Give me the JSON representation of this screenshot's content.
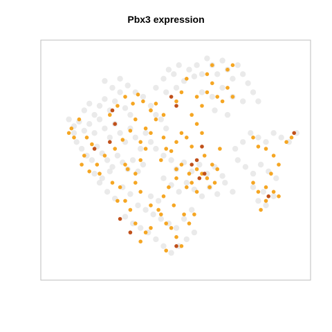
{
  "chart_data": {
    "type": "scatter",
    "title": "Pbx3 expression",
    "xlabel": "",
    "ylabel": "",
    "grid": false,
    "legend": "none",
    "axes_ticks": false,
    "colors": {
      "background_cells": "#e3e3e3",
      "low_expression": "#f5a623",
      "high_expression": "#c0501a"
    },
    "xlim": [
      0,
      100
    ],
    "ylim": [
      0,
      100
    ],
    "series": [
      {
        "level": "not_expressed",
        "points": [
          [
            10,
            65
          ],
          [
            12,
            67
          ],
          [
            14,
            63
          ],
          [
            16,
            66
          ],
          [
            18,
            62
          ],
          [
            20,
            68
          ],
          [
            22,
            64
          ],
          [
            24,
            60
          ],
          [
            26,
            66
          ],
          [
            28,
            62
          ],
          [
            30,
            58
          ],
          [
            32,
            64
          ],
          [
            34,
            60
          ],
          [
            36,
            55
          ],
          [
            38,
            62
          ],
          [
            40,
            58
          ],
          [
            11,
            58
          ],
          [
            13,
            55
          ],
          [
            15,
            52
          ],
          [
            17,
            50
          ],
          [
            19,
            56
          ],
          [
            21,
            53
          ],
          [
            23,
            50
          ],
          [
            25,
            47
          ],
          [
            27,
            52
          ],
          [
            29,
            49
          ],
          [
            31,
            46
          ],
          [
            33,
            50
          ],
          [
            35,
            45
          ],
          [
            37,
            48
          ],
          [
            14,
            72
          ],
          [
            16,
            75
          ],
          [
            18,
            70
          ],
          [
            20,
            74
          ],
          [
            22,
            77
          ],
          [
            24,
            72
          ],
          [
            26,
            76
          ],
          [
            28,
            80
          ],
          [
            30,
            73
          ],
          [
            32,
            70
          ],
          [
            22,
            85
          ],
          [
            25,
            82
          ],
          [
            28,
            86
          ],
          [
            31,
            83
          ],
          [
            34,
            80
          ],
          [
            37,
            78
          ],
          [
            40,
            74
          ],
          [
            42,
            70
          ],
          [
            44,
            68
          ],
          [
            46,
            64
          ],
          [
            42,
            82
          ],
          [
            45,
            86
          ],
          [
            47,
            90
          ],
          [
            49,
            88
          ],
          [
            51,
            92
          ],
          [
            53,
            85
          ],
          [
            55,
            90
          ],
          [
            57,
            87
          ],
          [
            46,
            80
          ],
          [
            50,
            82
          ],
          [
            58,
            92
          ],
          [
            60,
            88
          ],
          [
            62,
            95
          ],
          [
            64,
            92
          ],
          [
            66,
            88
          ],
          [
            68,
            94
          ],
          [
            70,
            90
          ],
          [
            72,
            86
          ],
          [
            74,
            92
          ],
          [
            76,
            88
          ],
          [
            78,
            84
          ],
          [
            80,
            80
          ],
          [
            82,
            76
          ],
          [
            60,
            80
          ],
          [
            64,
            78
          ],
          [
            68,
            82
          ],
          [
            72,
            78
          ],
          [
            76,
            76
          ],
          [
            65,
            72
          ],
          [
            70,
            70
          ],
          [
            42,
            55
          ],
          [
            45,
            52
          ],
          [
            48,
            50
          ],
          [
            50,
            46
          ],
          [
            53,
            49
          ],
          [
            56,
            45
          ],
          [
            59,
            48
          ],
          [
            62,
            44
          ],
          [
            65,
            47
          ],
          [
            68,
            43
          ],
          [
            45,
            42
          ],
          [
            48,
            39
          ],
          [
            51,
            36
          ],
          [
            54,
            40
          ],
          [
            57,
            37
          ],
          [
            60,
            34
          ],
          [
            63,
            38
          ],
          [
            66,
            35
          ],
          [
            69,
            40
          ],
          [
            72,
            36
          ],
          [
            73,
            55
          ],
          [
            76,
            58
          ],
          [
            79,
            62
          ],
          [
            82,
            60
          ],
          [
            85,
            58
          ],
          [
            88,
            62
          ],
          [
            91,
            60
          ],
          [
            94,
            58
          ],
          [
            97,
            62
          ],
          [
            74,
            50
          ],
          [
            77,
            47
          ],
          [
            80,
            44
          ],
          [
            83,
            48
          ],
          [
            86,
            45
          ],
          [
            89,
            42
          ],
          [
            84,
            36
          ],
          [
            82,
            32
          ],
          [
            85,
            30
          ],
          [
            88,
            34
          ],
          [
            80,
            38
          ],
          [
            30,
            25
          ],
          [
            33,
            22
          ],
          [
            36,
            20
          ],
          [
            39,
            18
          ],
          [
            42,
            15
          ],
          [
            45,
            12
          ],
          [
            48,
            9
          ],
          [
            51,
            12
          ],
          [
            54,
            15
          ],
          [
            57,
            18
          ],
          [
            35,
            30
          ],
          [
            38,
            28
          ],
          [
            41,
            26
          ],
          [
            44,
            24
          ],
          [
            47,
            22
          ],
          [
            50,
            20
          ],
          [
            53,
            24
          ],
          [
            56,
            28
          ],
          [
            40,
            34
          ],
          [
            43,
            32
          ],
          [
            20,
            40
          ],
          [
            23,
            36
          ],
          [
            26,
            33
          ],
          [
            29,
            38
          ],
          [
            32,
            35
          ],
          [
            18,
            44
          ],
          [
            21,
            42
          ],
          [
            24,
            45
          ],
          [
            8,
            68
          ],
          [
            10,
            62
          ]
        ]
      },
      {
        "level": "low",
        "points": [
          [
            8,
            62
          ],
          [
            12,
            68
          ],
          [
            15,
            60
          ],
          [
            14,
            52
          ],
          [
            17,
            57
          ],
          [
            19,
            48
          ],
          [
            22,
            52
          ],
          [
            16,
            45
          ],
          [
            20,
            44
          ],
          [
            13,
            48
          ],
          [
            25,
            40
          ],
          [
            28,
            38
          ],
          [
            27,
            32
          ],
          [
            31,
            46
          ],
          [
            34,
            44
          ],
          [
            36,
            50
          ],
          [
            26,
            55
          ],
          [
            29,
            59
          ],
          [
            32,
            63
          ],
          [
            34,
            68
          ],
          [
            38,
            64
          ],
          [
            40,
            62
          ],
          [
            36,
            58
          ],
          [
            38,
            55
          ],
          [
            24,
            70
          ],
          [
            27,
            74
          ],
          [
            30,
            78
          ],
          [
            33,
            75
          ],
          [
            35,
            79
          ],
          [
            37,
            76
          ],
          [
            40,
            72
          ],
          [
            42,
            68
          ],
          [
            45,
            60
          ],
          [
            46,
            55
          ],
          [
            44,
            50
          ],
          [
            48,
            54
          ],
          [
            50,
            46
          ],
          [
            52,
            48
          ],
          [
            55,
            44
          ],
          [
            56,
            40
          ],
          [
            58,
            46
          ],
          [
            60,
            44
          ],
          [
            62,
            42
          ],
          [
            63,
            38
          ],
          [
            65,
            40
          ],
          [
            58,
            36
          ],
          [
            54,
            38
          ],
          [
            50,
            42
          ],
          [
            47,
            38
          ],
          [
            45,
            34
          ],
          [
            52,
            62
          ],
          [
            54,
            60
          ],
          [
            56,
            56
          ],
          [
            50,
            58
          ],
          [
            61,
            52
          ],
          [
            64,
            48
          ],
          [
            66,
            46
          ],
          [
            67,
            55
          ],
          [
            60,
            62
          ],
          [
            58,
            66
          ],
          [
            56,
            70
          ],
          [
            50,
            76
          ],
          [
            52,
            80
          ],
          [
            54,
            86
          ],
          [
            58,
            78
          ],
          [
            60,
            74
          ],
          [
            62,
            80
          ],
          [
            64,
            84
          ],
          [
            66,
            78
          ],
          [
            68,
            76
          ],
          [
            70,
            82
          ],
          [
            72,
            78
          ],
          [
            72,
            92
          ],
          [
            70,
            90
          ],
          [
            62,
            88
          ],
          [
            64,
            92
          ],
          [
            80,
            60
          ],
          [
            82,
            56
          ],
          [
            85,
            55
          ],
          [
            88,
            52
          ],
          [
            90,
            48
          ],
          [
            87,
            44
          ],
          [
            85,
            38
          ],
          [
            82,
            36
          ],
          [
            80,
            40
          ],
          [
            88,
            36
          ],
          [
            90,
            34
          ],
          [
            85,
            32
          ],
          [
            83,
            28
          ],
          [
            93,
            58
          ],
          [
            95,
            60
          ],
          [
            40,
            72
          ],
          [
            42,
            75
          ],
          [
            45,
            70
          ],
          [
            44,
            26
          ],
          [
            46,
            22
          ],
          [
            48,
            20
          ],
          [
            50,
            16
          ],
          [
            52,
            12
          ],
          [
            46,
            10
          ],
          [
            40,
            20
          ],
          [
            38,
            18
          ],
          [
            36,
            14
          ],
          [
            34,
            22
          ],
          [
            32,
            28
          ],
          [
            30,
            32
          ],
          [
            40,
            30
          ],
          [
            43,
            28
          ],
          [
            49,
            30
          ],
          [
            53,
            26
          ],
          [
            55,
            22
          ],
          [
            57,
            26
          ],
          [
            36,
            36
          ],
          [
            34,
            40
          ],
          [
            30,
            48
          ],
          [
            10,
            60
          ],
          [
            9,
            64
          ]
        ]
      },
      {
        "level": "high",
        "points": [
          [
            25,
            72
          ],
          [
            26,
            66
          ],
          [
            18,
            55
          ],
          [
            24,
            58
          ],
          [
            48,
            78
          ],
          [
            50,
            74
          ],
          [
            56,
            48
          ],
          [
            58,
            50
          ],
          [
            59,
            42
          ],
          [
            61,
            44
          ],
          [
            60,
            56
          ],
          [
            32,
            18
          ],
          [
            28,
            24
          ],
          [
            96,
            62
          ],
          [
            86,
            34
          ],
          [
            50,
            12
          ]
        ]
      }
    ]
  }
}
